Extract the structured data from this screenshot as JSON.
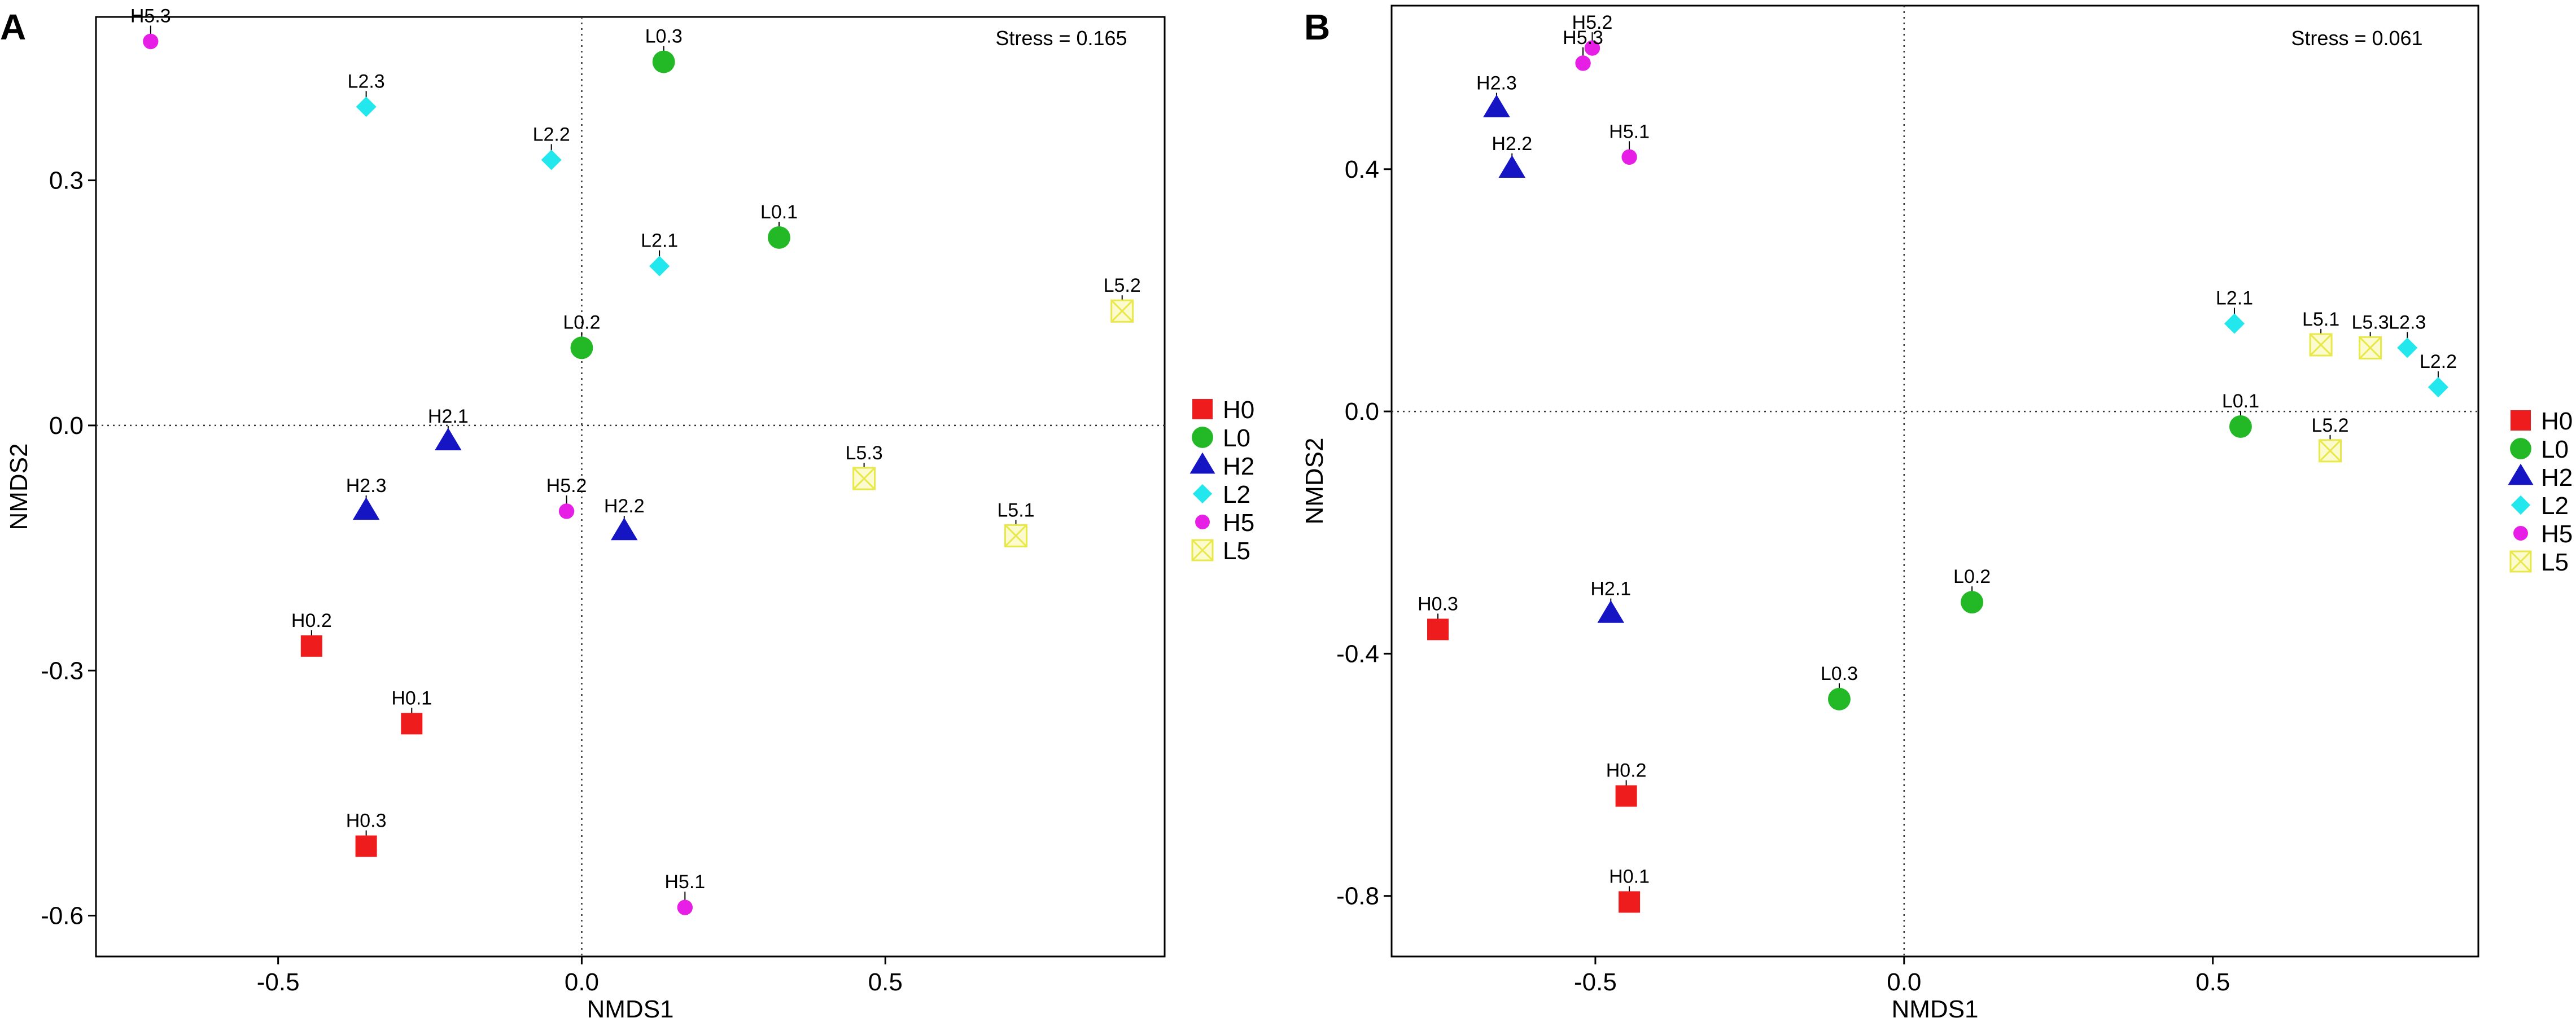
{
  "chart_data": [
    {
      "panel": "A",
      "type": "scatter",
      "title": "",
      "xlabel": "NMDS1",
      "ylabel": "NMDS2",
      "xlim": [
        -0.8,
        0.96
      ],
      "ylim": [
        -0.65,
        0.5
      ],
      "xticks": [
        -0.5,
        0.0,
        0.5
      ],
      "xtick_labels": [
        "-0.5",
        "0.0",
        "0.5"
      ],
      "yticks": [
        0.3,
        0.0,
        -0.3,
        -0.6
      ],
      "ytick_labels": [
        "0.3",
        "0.0",
        "-0.3",
        "-0.6"
      ],
      "annotation": "Stress = 0.165",
      "reference_lines": {
        "x": 0,
        "y": 0,
        "style": "dotted"
      },
      "legend_position": "right",
      "points": [
        {
          "label": "H5.3",
          "group": "H5",
          "x": -0.71,
          "y": 0.47
        },
        {
          "label": "L0.3",
          "group": "L0",
          "x": 0.135,
          "y": 0.445
        },
        {
          "label": "L2.3",
          "group": "L2",
          "x": -0.355,
          "y": 0.39
        },
        {
          "label": "L2.2",
          "group": "L2",
          "x": -0.05,
          "y": 0.325
        },
        {
          "label": "L0.1",
          "group": "L0",
          "x": 0.325,
          "y": 0.23
        },
        {
          "label": "L2.1",
          "group": "L2",
          "x": 0.128,
          "y": 0.195
        },
        {
          "label": "L5.2",
          "group": "L5",
          "x": 0.89,
          "y": 0.14
        },
        {
          "label": "L0.2",
          "group": "L0",
          "x": 0.0,
          "y": 0.095
        },
        {
          "label": "H2.1",
          "group": "H2",
          "x": -0.22,
          "y": -0.02
        },
        {
          "label": "L5.3",
          "group": "L5",
          "x": 0.465,
          "y": -0.065
        },
        {
          "label": "H2.3",
          "group": "H2",
          "x": -0.355,
          "y": -0.105
        },
        {
          "label": "H5.2",
          "group": "H5",
          "x": -0.025,
          "y": -0.105
        },
        {
          "label": "H2.2",
          "group": "H2",
          "x": 0.07,
          "y": -0.13
        },
        {
          "label": "L5.1",
          "group": "L5",
          "x": 0.715,
          "y": -0.135
        },
        {
          "label": "H0.2",
          "group": "H0",
          "x": -0.445,
          "y": -0.27
        },
        {
          "label": "H0.1",
          "group": "H0",
          "x": -0.28,
          "y": -0.365
        },
        {
          "label": "H0.3",
          "group": "H0",
          "x": -0.355,
          "y": -0.515
        },
        {
          "label": "H5.1",
          "group": "H5",
          "x": 0.17,
          "y": -0.59
        }
      ]
    },
    {
      "panel": "B",
      "type": "scatter",
      "title": "",
      "xlabel": "NMDS1",
      "ylabel": "NMDS2",
      "xlim": [
        -0.83,
        0.93
      ],
      "ylim": [
        -0.9,
        0.67
      ],
      "xticks": [
        -0.5,
        0.0,
        0.5
      ],
      "xtick_labels": [
        "-0.5",
        "0.0",
        "0.5"
      ],
      "yticks": [
        0.4,
        0.0,
        -0.4,
        -0.8
      ],
      "ytick_labels": [
        "0.4",
        "0.0",
        "-0.4",
        "-0.8"
      ],
      "annotation": "Stress = 0.061",
      "reference_lines": {
        "x": 0,
        "y": 0,
        "style": "dotted"
      },
      "legend_position": "right",
      "points": [
        {
          "label": "H5.2",
          "group": "H5",
          "x": -0.505,
          "y": 0.6
        },
        {
          "label": "H5.3",
          "group": "H5",
          "x": -0.52,
          "y": 0.575
        },
        {
          "label": "H2.3",
          "group": "H2",
          "x": -0.66,
          "y": 0.5
        },
        {
          "label": "H5.1",
          "group": "H5",
          "x": -0.445,
          "y": 0.42
        },
        {
          "label": "H2.2",
          "group": "H2",
          "x": -0.635,
          "y": 0.4
        },
        {
          "label": "L2.1",
          "group": "L2",
          "x": 0.535,
          "y": 0.145
        },
        {
          "label": "L5.1",
          "group": "L5",
          "x": 0.675,
          "y": 0.11
        },
        {
          "label": "L5.3",
          "group": "L5",
          "x": 0.755,
          "y": 0.105
        },
        {
          "label": "L2.3",
          "group": "L2",
          "x": 0.815,
          "y": 0.105
        },
        {
          "label": "L2.2",
          "group": "L2",
          "x": 0.865,
          "y": 0.04
        },
        {
          "label": "L0.1",
          "group": "L0",
          "x": 0.545,
          "y": -0.025
        },
        {
          "label": "L5.2",
          "group": "L5",
          "x": 0.69,
          "y": -0.065
        },
        {
          "label": "L0.2",
          "group": "L0",
          "x": 0.11,
          "y": -0.315
        },
        {
          "label": "H2.1",
          "group": "H2",
          "x": -0.475,
          "y": -0.335
        },
        {
          "label": "H0.3",
          "group": "H0",
          "x": -0.755,
          "y": -0.36
        },
        {
          "label": "L0.3",
          "group": "L0",
          "x": -0.105,
          "y": -0.475
        },
        {
          "label": "H0.2",
          "group": "H0",
          "x": -0.45,
          "y": -0.635
        },
        {
          "label": "H0.1",
          "group": "H0",
          "x": -0.445,
          "y": -0.81
        }
      ]
    }
  ],
  "legend": [
    {
      "group": "H0",
      "label": "H0",
      "shape": "square",
      "color": "#ee1c1c"
    },
    {
      "group": "L0",
      "label": "L0",
      "shape": "circle",
      "color": "#22b826"
    },
    {
      "group": "H2",
      "label": "H2",
      "shape": "triangle",
      "color": "#1515c4"
    },
    {
      "group": "L2",
      "label": "L2",
      "shape": "diamond",
      "color": "#22e8ee"
    },
    {
      "group": "H5",
      "label": "H5",
      "shape": "small-circle",
      "color": "#e61ee6"
    },
    {
      "group": "L5",
      "label": "L5",
      "shape": "boxed-x",
      "color": "#e8e84a"
    }
  ]
}
